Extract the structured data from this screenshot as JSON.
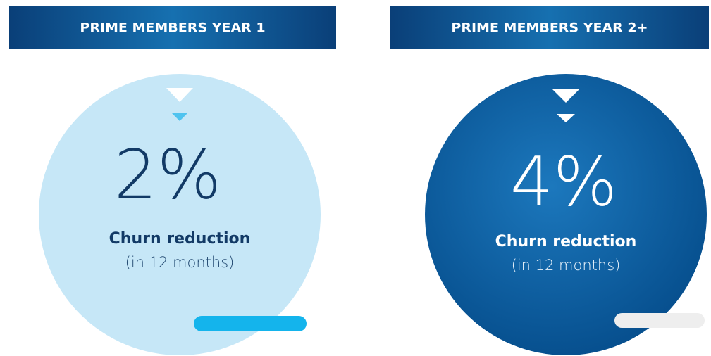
{
  "panels": [
    {
      "header": "PRIME MEMBERS YEAR 1",
      "value": "2%",
      "label": "Churn reduction",
      "sublabel": "(in 12 months)"
    },
    {
      "header": "PRIME MEMBERS YEAR 2+",
      "value": "4%",
      "label": "Churn reduction",
      "sublabel": "(in 12 months)"
    }
  ]
}
